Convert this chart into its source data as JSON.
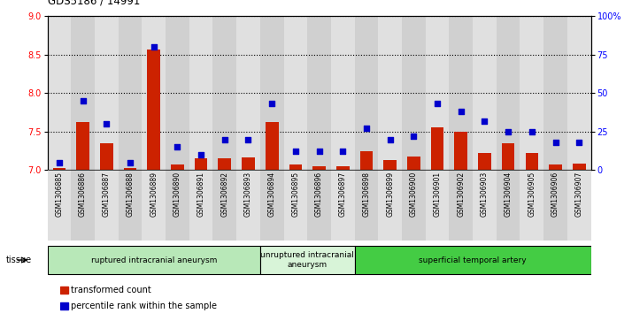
{
  "title": "GDS5186 / 14991",
  "samples": [
    "GSM1306885",
    "GSM1306886",
    "GSM1306887",
    "GSM1306888",
    "GSM1306889",
    "GSM1306890",
    "GSM1306891",
    "GSM1306892",
    "GSM1306893",
    "GSM1306894",
    "GSM1306895",
    "GSM1306896",
    "GSM1306897",
    "GSM1306898",
    "GSM1306899",
    "GSM1306900",
    "GSM1306901",
    "GSM1306902",
    "GSM1306903",
    "GSM1306904",
    "GSM1306905",
    "GSM1306906",
    "GSM1306907"
  ],
  "bar_values": [
    7.03,
    7.63,
    7.35,
    7.03,
    8.57,
    7.07,
    7.15,
    7.15,
    7.17,
    7.62,
    7.07,
    7.05,
    7.05,
    7.25,
    7.13,
    7.18,
    7.55,
    7.5,
    7.22,
    7.35,
    7.22,
    7.07,
    7.08
  ],
  "dot_percentiles": [
    5,
    45,
    30,
    5,
    80,
    15,
    10,
    20,
    20,
    43,
    12,
    12,
    12,
    27,
    20,
    22,
    43,
    38,
    32,
    25,
    25,
    18,
    18
  ],
  "ylim_left": [
    7.0,
    9.0
  ],
  "ylim_right": [
    0,
    100
  ],
  "yticks_left": [
    7.0,
    7.5,
    8.0,
    8.5,
    9.0
  ],
  "yticks_right": [
    0,
    25,
    50,
    75,
    100
  ],
  "ytick_labels_right": [
    "0",
    "25",
    "50",
    "75",
    "100%"
  ],
  "groups": [
    {
      "label": "ruptured intracranial aneurysm",
      "start": 0,
      "end": 9,
      "color": "#b8e8b8"
    },
    {
      "label": "unruptured intracranial\naneurysm",
      "start": 9,
      "end": 13,
      "color": "#d8f4d8"
    },
    {
      "label": "superficial temporal artery",
      "start": 13,
      "end": 23,
      "color": "#44cc44"
    }
  ],
  "bar_color": "#cc2200",
  "dot_color": "#0000cc",
  "bar_width": 0.55,
  "plot_bg_color": "#d8d8d8",
  "label_bg_color": "#d8d8d8",
  "tissue_label": "tissue",
  "legend_items": [
    {
      "label": "transformed count",
      "color": "#cc2200"
    },
    {
      "label": "percentile rank within the sample",
      "color": "#0000cc"
    }
  ]
}
